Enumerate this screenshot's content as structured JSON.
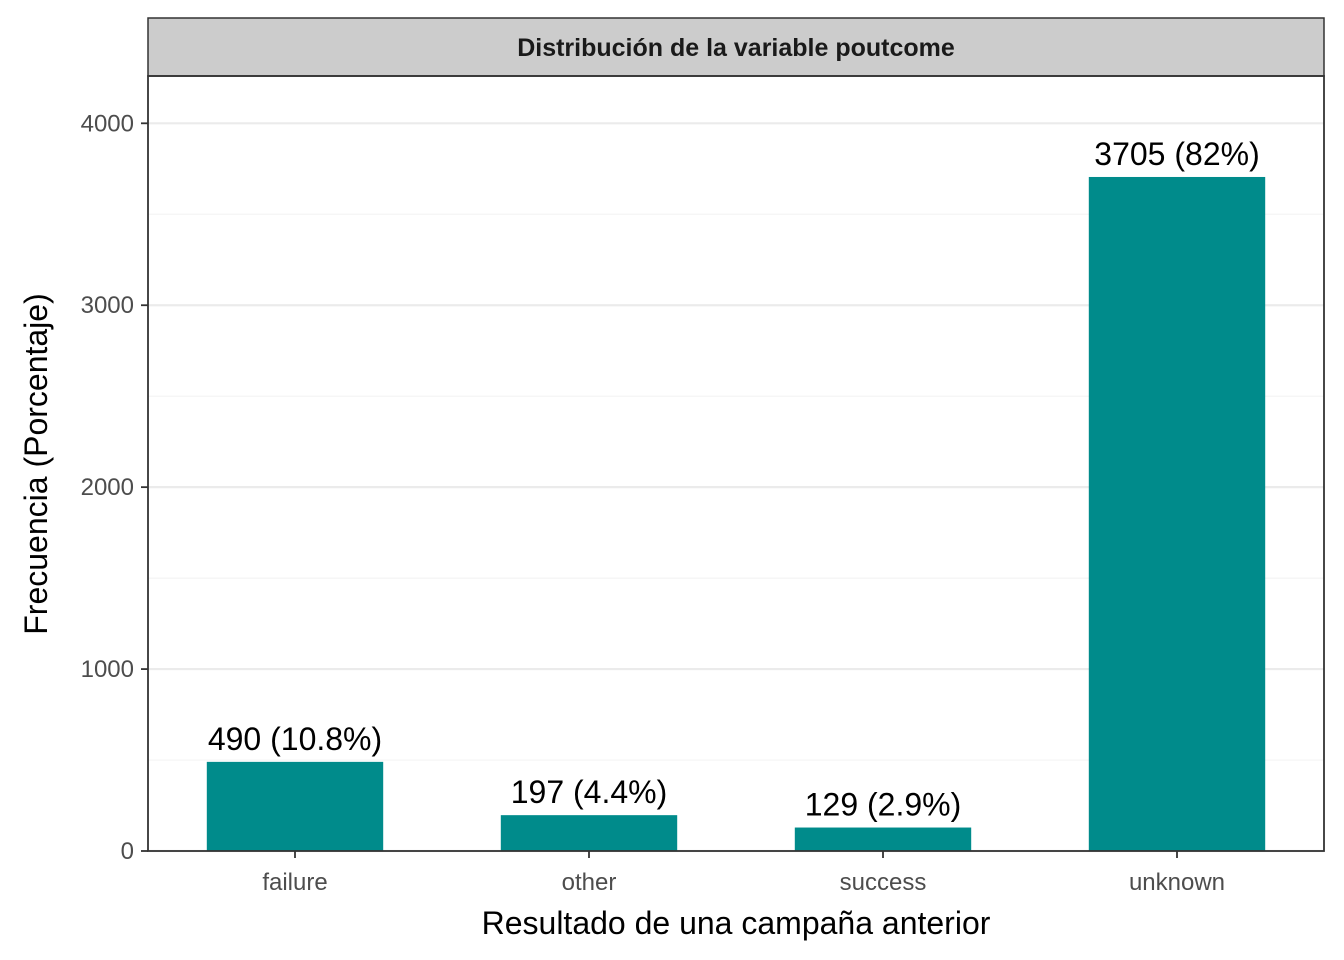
{
  "chart_data": {
    "type": "bar",
    "title": "Distribución de la variable poutcome",
    "xlabel": "Resultado de una campaña anterior",
    "ylabel": "Frecuencia (Porcentaje)",
    "categories": [
      "failure",
      "other",
      "success",
      "unknown"
    ],
    "values": [
      490,
      197,
      129,
      3705
    ],
    "labels": [
      "490 (10.8%)",
      "197 (4.4%)",
      "129 (2.9%)",
      "3705 (82%)"
    ],
    "ylim": [
      0,
      4260
    ],
    "yticks": [
      0,
      1000,
      2000,
      3000,
      4000
    ],
    "grid": true,
    "legend": "none"
  },
  "colors": {
    "bar": "#008B8B",
    "strip_background": "#CCCCCC",
    "grid_major": "#EBEBEB",
    "grid_minor": "#F4F4F4",
    "panel_border": "#333333"
  }
}
